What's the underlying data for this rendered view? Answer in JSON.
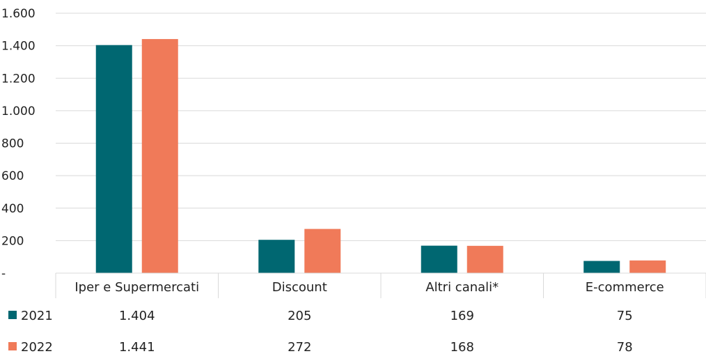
{
  "chart_data": {
    "type": "bar",
    "title": "",
    "xlabel": "",
    "ylabel": "",
    "ylim": [
      0,
      1600
    ],
    "yticks": [
      0,
      200,
      400,
      600,
      800,
      1000,
      1200,
      1400,
      1600
    ],
    "ytick_labels": [
      "-",
      "200",
      "400",
      "600",
      "800",
      "1.000",
      "1.200",
      "1.400",
      "1.600"
    ],
    "grid": true,
    "legend": "bottom-left (data table)",
    "categories": [
      "Iper e Supermercati",
      "Discount",
      "Altri canali*",
      "E-commerce"
    ],
    "series": [
      {
        "name": "2021",
        "color": "#006771",
        "values": [
          1404,
          205,
          169,
          75
        ],
        "value_labels": [
          "1.404",
          "205",
          "169",
          "75"
        ]
      },
      {
        "name": "2022",
        "color": "#f07a59",
        "values": [
          1441,
          272,
          168,
          78
        ],
        "value_labels": [
          "1.441",
          "272",
          "168",
          "78"
        ]
      }
    ]
  }
}
